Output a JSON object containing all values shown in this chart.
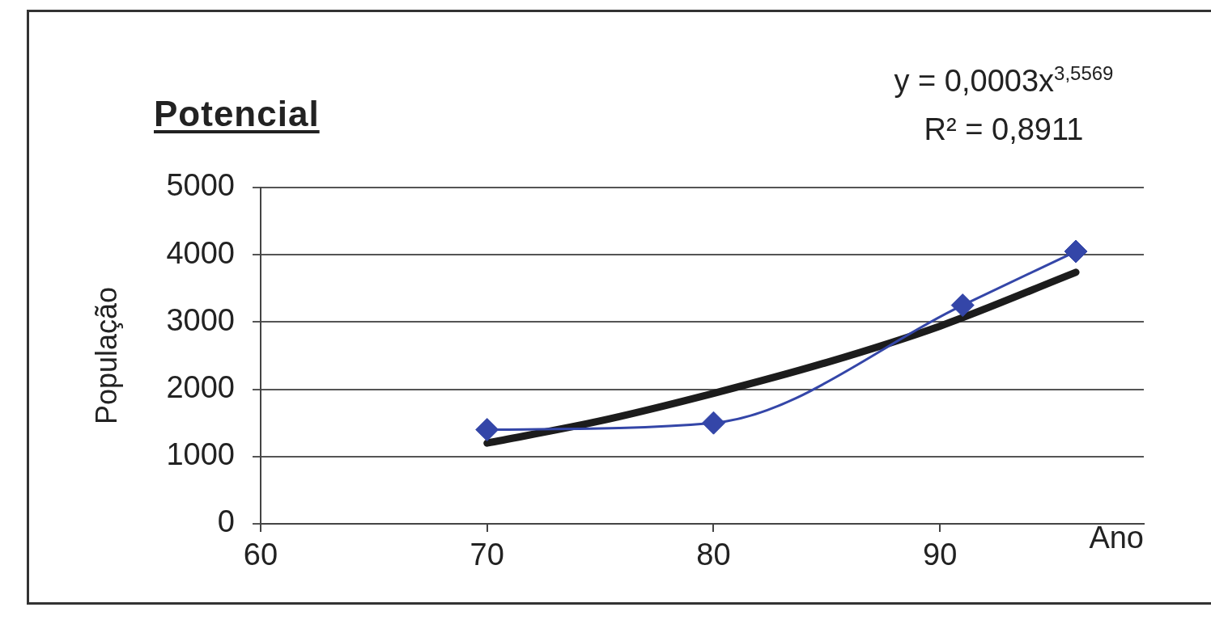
{
  "chart_data": {
    "type": "line",
    "title": "Potencial",
    "xlabel": "Ano",
    "ylabel": "População",
    "annotations": [
      "y = 0,0003x$^{3,5569}$",
      "R² = 0,8911"
    ],
    "xlim": [
      60,
      99
    ],
    "xticks": [
      60,
      70,
      80,
      90
    ],
    "ylim": [
      0,
      5000
    ],
    "yticks": [
      0,
      1000,
      2000,
      3000,
      4000,
      5000
    ],
    "grid": "y",
    "series": [
      {
        "type": "line",
        "color": "#3446a8",
        "x": [
          70,
          80,
          91,
          96
        ],
        "values": [
          1400,
          1500,
          3250,
          4050
        ],
        "marker": "diamond"
      },
      {
        "type": "line",
        "color": "#1c1c1c",
        "x": [
          70,
          75,
          80,
          85,
          90,
          96
        ],
        "values": [
          1200,
          1530,
          1940,
          2400,
          2940,
          3740
        ],
        "marker": "none"
      }
    ]
  }
}
